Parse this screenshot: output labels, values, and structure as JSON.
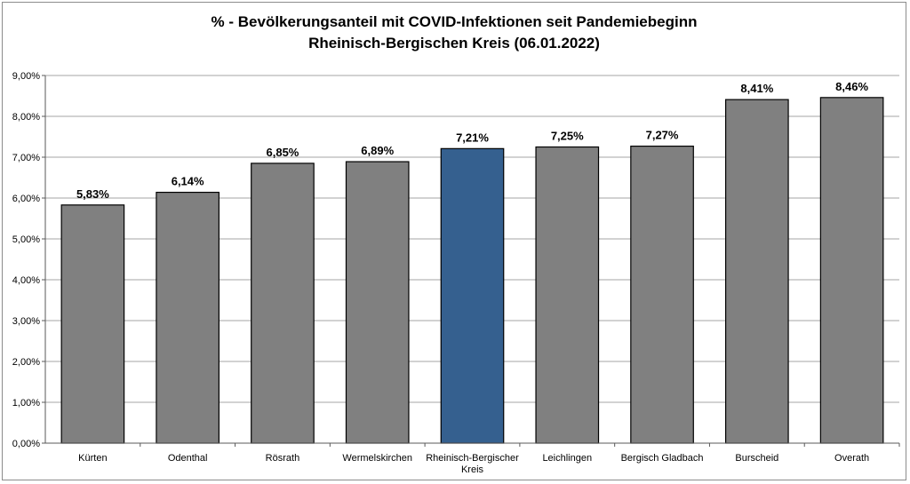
{
  "chart_data": {
    "type": "bar",
    "title": "% - Bevölkerungsanteil mit COVID-Infektionen seit Pandemiebeginn",
    "subtitle": "Rheinisch-Bergischen Kreis (06.01.2022)",
    "categories": [
      "Kürten",
      "Odenthal",
      "Rösrath",
      "Wermelskirchen",
      "Rheinisch-Bergischer Kreis",
      "Leichlingen",
      "Bergisch Gladbach",
      "Burscheid",
      "Overath"
    ],
    "category_lines": [
      [
        "Kürten"
      ],
      [
        "Odenthal"
      ],
      [
        "Rösrath"
      ],
      [
        "Wermelskirchen"
      ],
      [
        "Rheinisch-Bergischer",
        "Kreis"
      ],
      [
        "Leichlingen"
      ],
      [
        "Bergisch Gladbach"
      ],
      [
        "Burscheid"
      ],
      [
        "Overath"
      ]
    ],
    "values": [
      5.83,
      6.14,
      6.85,
      6.89,
      7.21,
      7.25,
      7.27,
      8.41,
      8.46
    ],
    "value_labels": [
      "5,83%",
      "6,14%",
      "6,85%",
      "6,89%",
      "7,21%",
      "7,25%",
      "7,27%",
      "8,41%",
      "8,46%"
    ],
    "ylim": [
      0,
      9
    ],
    "yticks": [
      0,
      1,
      2,
      3,
      4,
      5,
      6,
      7,
      8,
      9
    ],
    "ytick_labels": [
      "0,00%",
      "1,00%",
      "2,00%",
      "3,00%",
      "4,00%",
      "5,00%",
      "6,00%",
      "7,00%",
      "8,00%",
      "9,00%"
    ],
    "xlabel": "",
    "ylabel": "",
    "grid": true,
    "legend": "none",
    "colors": {
      "default_bar": "#808080",
      "highlight_bar": "#35608f",
      "highlight_index": 4,
      "grid": "#a6a6a6",
      "bar_border": "#000000"
    }
  }
}
